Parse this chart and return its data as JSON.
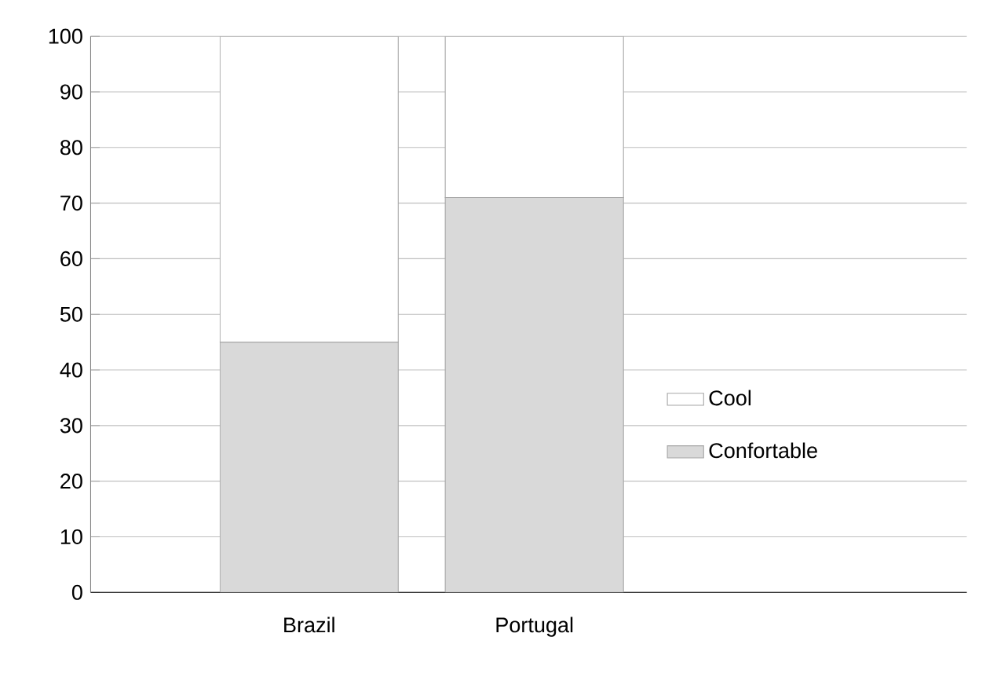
{
  "chart_data": {
    "type": "bar",
    "stacked": true,
    "categories": [
      "Brazil",
      "Portugal"
    ],
    "series": [
      {
        "name": "Confortable",
        "color": "#d9d9d9",
        "values": [
          45,
          71
        ]
      },
      {
        "name": "Cool",
        "color": "#ffffff",
        "values": [
          55,
          29
        ]
      }
    ],
    "ylim": [
      0,
      100
    ],
    "yticks": [
      0,
      10,
      20,
      30,
      40,
      50,
      60,
      70,
      80,
      90,
      100
    ],
    "grid": "y",
    "legend": "right"
  }
}
